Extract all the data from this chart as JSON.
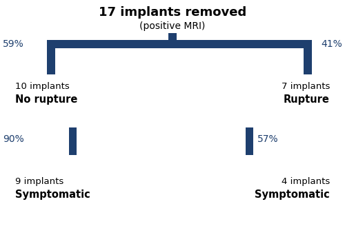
{
  "title_line1": "17 implants removed",
  "title_line2": "(positive MRI)",
  "branch_color": "#1e3f6e",
  "text_color": "#1e3f6e",
  "left_pct": "59%",
  "right_pct": "41%",
  "left_count": "10 implants",
  "left_label": "No rupture",
  "right_count": "7 implants",
  "right_label": "Rupture",
  "left_sub_pct": "90%",
  "right_sub_pct": "57%",
  "left_sub_count": "9 implants",
  "left_sub_label": "Symptomatic",
  "right_sub_count": "4 implants",
  "right_sub_label": "Symptomatic",
  "fig_width": 5.0,
  "fig_height": 3.28,
  "dpi": 100
}
